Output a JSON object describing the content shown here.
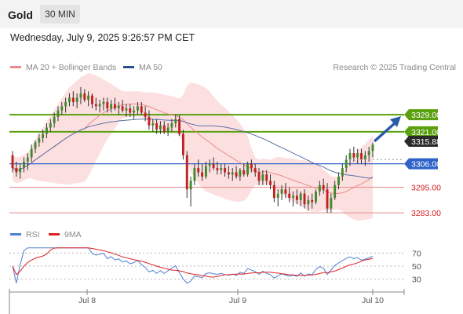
{
  "header": {
    "title": "Gold",
    "interval": "30 MIN",
    "datetime": "Wednesday, July 9, 2025 9:26:57 PM CET"
  },
  "legend_main": {
    "items": [
      {
        "label": "MA 20 + Bollinger Bands",
        "color": "#f08a8a"
      },
      {
        "label": "MA 50",
        "color": "#2c4f8c"
      }
    ],
    "copyright": "Research © 2025 Trading Central"
  },
  "legend_rsi": {
    "items": [
      {
        "label": "RSI",
        "color": "#4f7fd1"
      },
      {
        "label": "9MA",
        "color": "#e02020"
      }
    ]
  },
  "colors": {
    "resistance": "#5aa00f",
    "pivot": "#2f62c8",
    "support": "#e88a8a",
    "support_text": "#d22020",
    "current_price_bg": "#2a2a2a",
    "bull_candle": "#3f8a2c",
    "bear_candle": "#c41f1f",
    "bollinger_fill": "#fbd5d5",
    "arrow": "#2a5aa8"
  },
  "price_levels": {
    "r2": "3329.00",
    "r1": "3321.00",
    "current": "3315.88",
    "pivot": "3306.00",
    "s1": "3295.00",
    "s2": "3283.00"
  },
  "rsi_axis": [
    "70",
    "50",
    "30"
  ],
  "time_axis": [
    "Jul 8",
    "Jul 9",
    "Jul 10"
  ],
  "chart_data": {
    "type": "candlestick",
    "title": "Gold",
    "interval": "30 MIN",
    "ylim": [
      3279,
      3346
    ],
    "horizontal_levels": [
      {
        "label": "3329.00",
        "value": 3329.0,
        "kind": "resistance"
      },
      {
        "label": "3321.00",
        "value": 3321.0,
        "kind": "resistance"
      },
      {
        "label": "3306.00",
        "value": 3306.0,
        "kind": "pivot"
      },
      {
        "label": "3295.00",
        "value": 3295.0,
        "kind": "support"
      },
      {
        "label": "3283.00",
        "value": 3283.0,
        "kind": "support"
      }
    ],
    "current_price": 3315.88,
    "candles": [
      [
        3310,
        3312,
        3302,
        3304
      ],
      [
        3304,
        3307,
        3300,
        3302
      ],
      [
        3302,
        3306,
        3299,
        3304
      ],
      [
        3304,
        3309,
        3302,
        3307
      ],
      [
        3307,
        3311,
        3303,
        3309
      ],
      [
        3309,
        3315,
        3307,
        3313
      ],
      [
        3313,
        3317,
        3311,
        3316
      ],
      [
        3316,
        3320,
        3314,
        3318
      ],
      [
        3318,
        3322,
        3316,
        3320
      ],
      [
        3320,
        3325,
        3318,
        3323
      ],
      [
        3323,
        3327,
        3321,
        3325
      ],
      [
        3325,
        3330,
        3323,
        3328
      ],
      [
        3328,
        3333,
        3326,
        3331
      ],
      [
        3331,
        3335,
        3329,
        3333
      ],
      [
        3333,
        3337,
        3330,
        3335
      ],
      [
        3335,
        3339,
        3333,
        3337
      ],
      [
        3337,
        3340,
        3333,
        3335
      ],
      [
        3335,
        3339,
        3332,
        3337
      ],
      [
        3337,
        3342,
        3334,
        3339
      ],
      [
        3339,
        3341,
        3335,
        3336
      ],
      [
        3336,
        3340,
        3333,
        3338
      ],
      [
        3338,
        3339,
        3332,
        3334
      ],
      [
        3334,
        3337,
        3331,
        3333
      ],
      [
        3333,
        3336,
        3330,
        3334
      ],
      [
        3334,
        3337,
        3331,
        3335
      ],
      [
        3335,
        3337,
        3330,
        3332
      ],
      [
        3332,
        3336,
        3330,
        3334
      ],
      [
        3334,
        3337,
        3331,
        3332
      ],
      [
        3332,
        3335,
        3329,
        3333
      ],
      [
        3333,
        3336,
        3330,
        3331
      ],
      [
        3331,
        3334,
        3328,
        3332
      ],
      [
        3332,
        3334,
        3328,
        3330
      ],
      [
        3330,
        3333,
        3327,
        3331
      ],
      [
        3331,
        3335,
        3329,
        3333
      ],
      [
        3333,
        3335,
        3329,
        3330
      ],
      [
        3330,
        3333,
        3326,
        3328
      ],
      [
        3328,
        3331,
        3322,
        3324
      ],
      [
        3324,
        3327,
        3321,
        3325
      ],
      [
        3325,
        3327,
        3320,
        3322
      ],
      [
        3322,
        3326,
        3320,
        3324
      ],
      [
        3324,
        3326,
        3320,
        3321
      ],
      [
        3321,
        3325,
        3319,
        3323
      ],
      [
        3323,
        3327,
        3321,
        3325
      ],
      [
        3325,
        3329,
        3323,
        3327
      ],
      [
        3327,
        3329,
        3319,
        3320
      ],
      [
        3320,
        3322,
        3308,
        3310
      ],
      [
        3310,
        3312,
        3290,
        3294
      ],
      [
        3294,
        3300,
        3286,
        3298
      ],
      [
        3298,
        3306,
        3296,
        3304
      ],
      [
        3304,
        3308,
        3300,
        3302
      ],
      [
        3302,
        3306,
        3298,
        3300
      ],
      [
        3300,
        3307,
        3299,
        3305
      ],
      [
        3305,
        3308,
        3302,
        3306
      ],
      [
        3306,
        3309,
        3303,
        3304
      ],
      [
        3304,
        3307,
        3301,
        3303
      ],
      [
        3303,
        3306,
        3301,
        3304
      ],
      [
        3304,
        3306,
        3300,
        3302
      ],
      [
        3302,
        3305,
        3299,
        3301
      ],
      [
        3301,
        3304,
        3298,
        3302
      ],
      [
        3302,
        3305,
        3299,
        3300
      ],
      [
        3300,
        3304,
        3298,
        3303
      ],
      [
        3303,
        3306,
        3300,
        3301
      ],
      [
        3301,
        3307,
        3300,
        3306
      ],
      [
        3306,
        3308,
        3302,
        3304
      ],
      [
        3304,
        3306,
        3300,
        3302
      ],
      [
        3302,
        3304,
        3296,
        3298
      ],
      [
        3298,
        3303,
        3296,
        3301
      ],
      [
        3301,
        3303,
        3296,
        3298
      ],
      [
        3298,
        3301,
        3294,
        3296
      ],
      [
        3296,
        3298,
        3288,
        3290
      ],
      [
        3290,
        3294,
        3286,
        3292
      ],
      [
        3292,
        3296,
        3289,
        3294
      ],
      [
        3294,
        3297,
        3290,
        3292
      ],
      [
        3292,
        3295,
        3288,
        3290
      ],
      [
        3290,
        3293,
        3286,
        3291
      ],
      [
        3291,
        3294,
        3287,
        3289
      ],
      [
        3289,
        3293,
        3286,
        3292
      ],
      [
        3292,
        3294,
        3285,
        3287
      ],
      [
        3287,
        3291,
        3284,
        3289
      ],
      [
        3289,
        3292,
        3285,
        3288
      ],
      [
        3288,
        3294,
        3287,
        3293
      ],
      [
        3293,
        3298,
        3291,
        3296
      ],
      [
        3296,
        3299,
        3292,
        3294
      ],
      [
        3294,
        3297,
        3283,
        3285
      ],
      [
        3285,
        3292,
        3283,
        3290
      ],
      [
        3290,
        3298,
        3289,
        3296
      ],
      [
        3296,
        3302,
        3294,
        3300
      ],
      [
        3300,
        3306,
        3298,
        3304
      ],
      [
        3304,
        3310,
        3302,
        3308
      ],
      [
        3308,
        3313,
        3305,
        3311
      ],
      [
        3311,
        3314,
        3307,
        3309
      ],
      [
        3309,
        3313,
        3306,
        3311
      ],
      [
        3311,
        3313,
        3306,
        3308
      ],
      [
        3308,
        3312,
        3305,
        3310
      ],
      [
        3310,
        3314,
        3307,
        3312
      ],
      [
        3312,
        3316,
        3309,
        3315
      ]
    ]
  }
}
